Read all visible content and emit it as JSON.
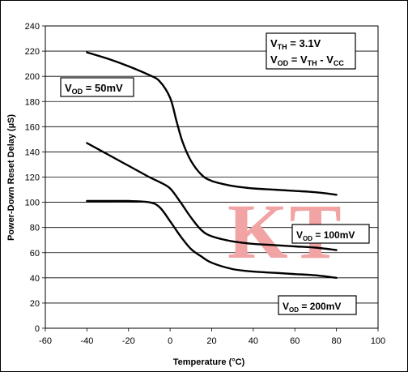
{
  "watermark": "KT",
  "chart_data": {
    "type": "line",
    "xlabel": "Temperature (°C)",
    "ylabel": "Power-Down Reset Delay (µS)",
    "xlim": [
      -60,
      100
    ],
    "ylim": [
      0,
      240
    ],
    "xticks": [
      "-60",
      "-40",
      "-20",
      "0",
      "20",
      "40",
      "60",
      "80",
      "100"
    ],
    "yticks": [
      "0",
      "20",
      "40",
      "60",
      "80",
      "100",
      "120",
      "140",
      "160",
      "180",
      "200",
      "220",
      "240"
    ],
    "grid": "horizontal",
    "series": [
      {
        "name": "V_OD = 50mV",
        "x": [
          -40,
          -30,
          -20,
          -10,
          -5,
          0,
          3,
          6,
          10,
          15,
          20,
          30,
          40,
          50,
          60,
          70,
          80
        ],
        "y": [
          219,
          214,
          208,
          201,
          196,
          183,
          165,
          148,
          133,
          122,
          117,
          113,
          111,
          110,
          109,
          108,
          106
        ]
      },
      {
        "name": "V_OD = 100mV",
        "x": [
          -40,
          -30,
          -20,
          -10,
          -5,
          0,
          5,
          10,
          15,
          20,
          30,
          40,
          50,
          60,
          70,
          80
        ],
        "y": [
          147,
          138,
          129,
          120,
          116,
          111,
          100,
          88,
          78,
          73,
          69,
          67,
          66,
          65,
          64,
          62
        ]
      },
      {
        "name": "V_OD = 200mV",
        "x": [
          -40,
          -30,
          -20,
          -10,
          -5,
          0,
          5,
          10,
          15,
          20,
          30,
          40,
          50,
          60,
          70,
          80
        ],
        "y": [
          101,
          101,
          101,
          100,
          96,
          85,
          73,
          63,
          57,
          52,
          47,
          45,
          44,
          43,
          42,
          40
        ]
      }
    ],
    "annotations": {
      "top_right": {
        "line1": {
          "main": "V",
          "sub": "TH",
          "rest": " = 3.1V"
        },
        "line2": {
          "main": "V",
          "sub": "OD",
          "mid1": " = V",
          "sub2": "TH",
          "mid2": " - V",
          "sub3": "CC"
        }
      },
      "label_50": {
        "main": "V",
        "sub": "OD",
        "rest": " = 50mV"
      },
      "label_100": {
        "main": "V",
        "sub": "OD",
        "rest": " = 100mV"
      },
      "label_200": {
        "main": "V",
        "sub": "OD",
        "rest": " = 200mV"
      }
    }
  }
}
